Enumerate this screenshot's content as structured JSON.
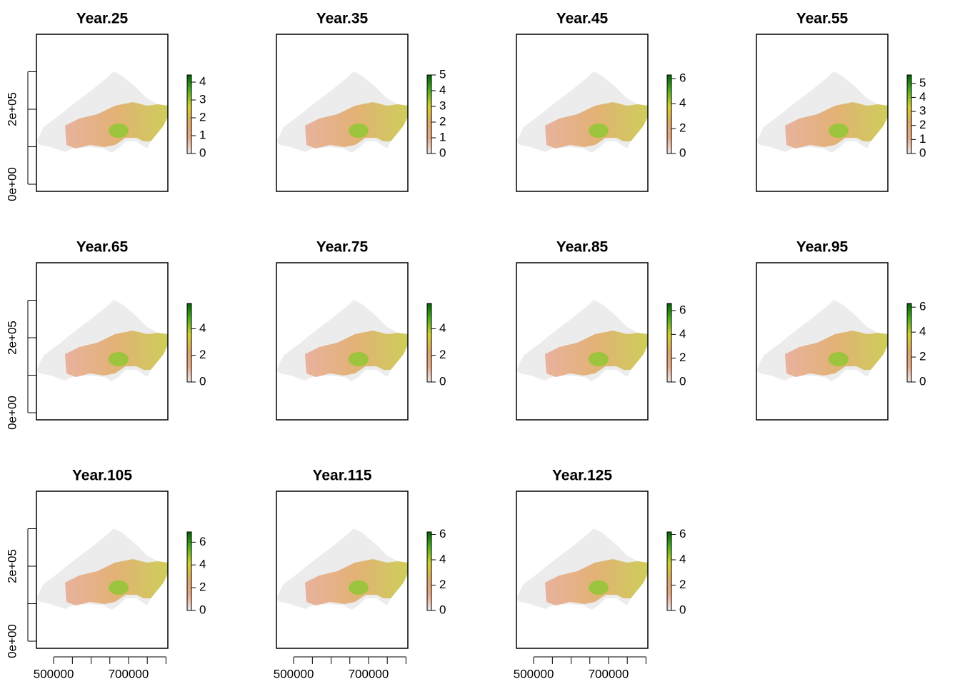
{
  "chart_data": [
    {
      "type": "raster",
      "title": "Year.25",
      "zlim": [
        0,
        4.4
      ],
      "zticks": [
        0,
        1,
        2,
        3,
        4
      ],
      "xlim": [
        454000,
        805000
      ],
      "ylim": [
        -19000,
        400000
      ],
      "yticks": [
        {
          "value": 0,
          "label": "0e+00"
        },
        {
          "value": 100000,
          "label": null
        },
        {
          "value": 200000,
          "label": "2e+05"
        },
        {
          "value": 300000,
          "label": null
        }
      ]
    },
    {
      "type": "raster",
      "title": "Year.35",
      "zlim": [
        0,
        5
      ],
      "zticks": [
        0,
        1,
        2,
        3,
        4,
        5
      ]
    },
    {
      "type": "raster",
      "title": "Year.45",
      "zlim": [
        0,
        6.3
      ],
      "zticks": [
        0,
        2,
        4,
        6
      ]
    },
    {
      "type": "raster",
      "title": "Year.55",
      "zlim": [
        0,
        5.6
      ],
      "zticks": [
        0,
        1,
        2,
        3,
        4,
        5
      ]
    },
    {
      "type": "raster",
      "title": "Year.65",
      "zlim": [
        0,
        5.9
      ],
      "zticks": [
        0,
        2,
        4
      ],
      "xlim": [
        454000,
        805000
      ],
      "ylim": [
        -19000,
        400000
      ],
      "yticks": [
        {
          "value": 0,
          "label": "0e+00"
        },
        {
          "value": 100000,
          "label": null
        },
        {
          "value": 200000,
          "label": "2e+05"
        },
        {
          "value": 300000,
          "label": null
        }
      ]
    },
    {
      "type": "raster",
      "title": "Year.75",
      "zlim": [
        0,
        5.9
      ],
      "zticks": [
        0,
        2,
        4
      ]
    },
    {
      "type": "raster",
      "title": "Year.85",
      "zlim": [
        0,
        6.6
      ],
      "zticks": [
        0,
        2,
        4,
        6
      ]
    },
    {
      "type": "raster",
      "title": "Year.95",
      "zlim": [
        0,
        6.3
      ],
      "zticks": [
        0,
        2,
        4,
        6
      ]
    },
    {
      "type": "raster",
      "title": "Year.105",
      "zlim": [
        0,
        6.9
      ],
      "zticks": [
        0,
        2,
        4,
        6
      ],
      "xlim": [
        454000,
        805000
      ],
      "ylim": [
        -19000,
        400000
      ],
      "yticks": [
        {
          "value": 0,
          "label": "0e+00"
        },
        {
          "value": 100000,
          "label": null
        },
        {
          "value": 200000,
          "label": "2e+05"
        },
        {
          "value": 300000,
          "label": null
        }
      ],
      "xticks": [
        500000,
        {
          "value": 550000,
          "label": null
        },
        {
          "value": 600000,
          "label": null
        },
        {
          "value": 650000,
          "label": null
        },
        700000,
        {
          "value": 750000,
          "label": null
        },
        {
          "value": 800000,
          "label": null
        }
      ]
    },
    {
      "type": "raster",
      "title": "Year.115",
      "zlim": [
        0,
        6.2
      ],
      "zticks": [
        0,
        2,
        4,
        6
      ],
      "xlim": [
        454000,
        805000
      ],
      "ylim": [
        -19000,
        400000
      ],
      "xticks": [
        500000,
        {
          "value": 550000,
          "label": null
        },
        {
          "value": 600000,
          "label": null
        },
        {
          "value": 650000,
          "label": null
        },
        700000,
        {
          "value": 750000,
          "label": null
        },
        {
          "value": 800000,
          "label": null
        }
      ]
    },
    {
      "type": "raster",
      "title": "Year.125",
      "zlim": [
        0,
        6.2
      ],
      "zticks": [
        0,
        2,
        4,
        6
      ],
      "xlim": [
        454000,
        805000
      ],
      "ylim": [
        -19000,
        400000
      ],
      "xticks": [
        500000,
        {
          "value": 550000,
          "label": null
        },
        {
          "value": 600000,
          "label": null
        },
        {
          "value": 650000,
          "label": null
        },
        700000,
        {
          "value": 750000,
          "label": null
        },
        {
          "value": 800000,
          "label": null
        }
      ]
    }
  ]
}
